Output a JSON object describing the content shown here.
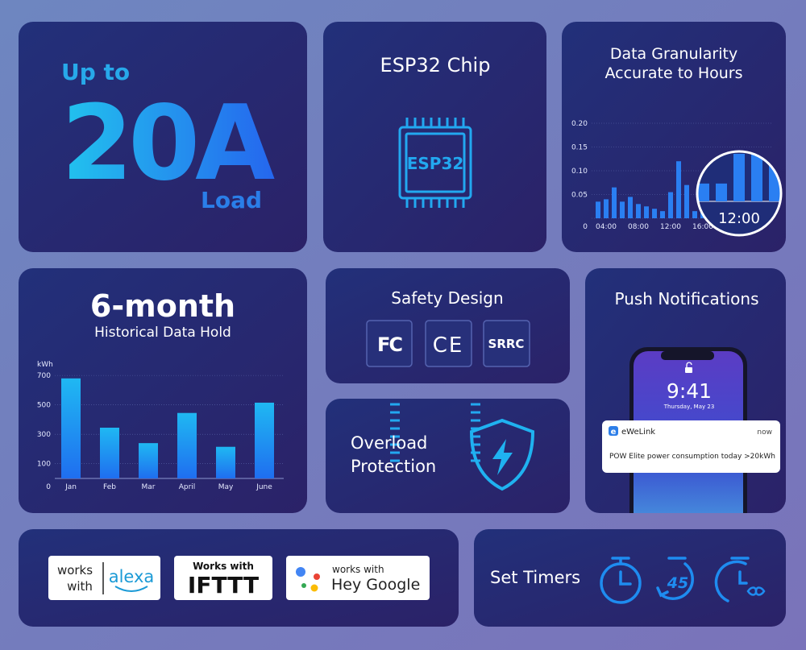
{
  "power_card": {
    "prefix": "Up to",
    "rating": "20A",
    "suffix": "Load"
  },
  "chip_card": {
    "title": "ESP32 Chip",
    "chip_label": "ESP32"
  },
  "granularity_card": {
    "title_line1": "Data Granularity",
    "title_line2": "Accurate to Hours",
    "chart": {
      "type": "bar",
      "x": [
        3,
        4,
        5,
        6,
        7,
        8,
        9,
        10,
        11,
        12,
        13,
        14,
        15,
        16,
        17,
        18,
        19
      ],
      "values": [
        0.035,
        0.04,
        0.065,
        0.035,
        0.045,
        0.03,
        0.025,
        0.02,
        0.015,
        0.055,
        0.12,
        0.07,
        0.015,
        0.015,
        0.04,
        0.04,
        0.03
      ],
      "xlim": [
        0,
        24
      ],
      "xticks": [
        {
          "value": 4,
          "label": "04:00"
        },
        {
          "value": 8,
          "label": "08:00"
        },
        {
          "value": 12,
          "label": "12:00"
        },
        {
          "value": 16,
          "label": "16:00"
        }
      ],
      "ylim": [
        0,
        0.2
      ],
      "yticks": [
        0,
        0.05,
        {
          "value": 0.1,
          "label": "0.10"
        },
        0.15,
        {
          "value": 0.2,
          "label": "0.20"
        }
      ],
      "color": "#2a7ff2",
      "magnifier_label": "12:00"
    }
  },
  "history_card": {
    "title": "6-month",
    "subtitle": "Historical Data Hold",
    "chart": {
      "type": "bar",
      "unit": "kWh",
      "categories": [
        "Jan",
        "Feb",
        "Mar",
        "April",
        "May",
        "June"
      ],
      "values": [
        680,
        345,
        240,
        445,
        215,
        515
      ],
      "ylim": [
        0,
        750
      ],
      "yticks": [
        0,
        100,
        300,
        500,
        700
      ]
    }
  },
  "safety_card": {
    "title": "Safety Design",
    "certifications": [
      "FC",
      "CE",
      "SRRC"
    ]
  },
  "overload_card": {
    "title_line1": "Overload",
    "title_line2": "Protection"
  },
  "notifications_card": {
    "title": "Push Notifications",
    "phone_time": "9:41",
    "phone_date": "Thursday, May 23",
    "app_icon": "e",
    "app_name": "eWeLink",
    "time_ago": "now",
    "message": "POW Elite power consumption today >20kWh"
  },
  "assistants": {
    "alexa": {
      "line1": "works",
      "line2": "with",
      "brand": "alexa"
    },
    "ifttt": {
      "line1": "Works with",
      "brand": "IFTTT"
    },
    "google": {
      "line1": "works with",
      "brand": "Hey Google"
    }
  },
  "timers_card": {
    "title": "Set Timers",
    "countdown": "45"
  }
}
